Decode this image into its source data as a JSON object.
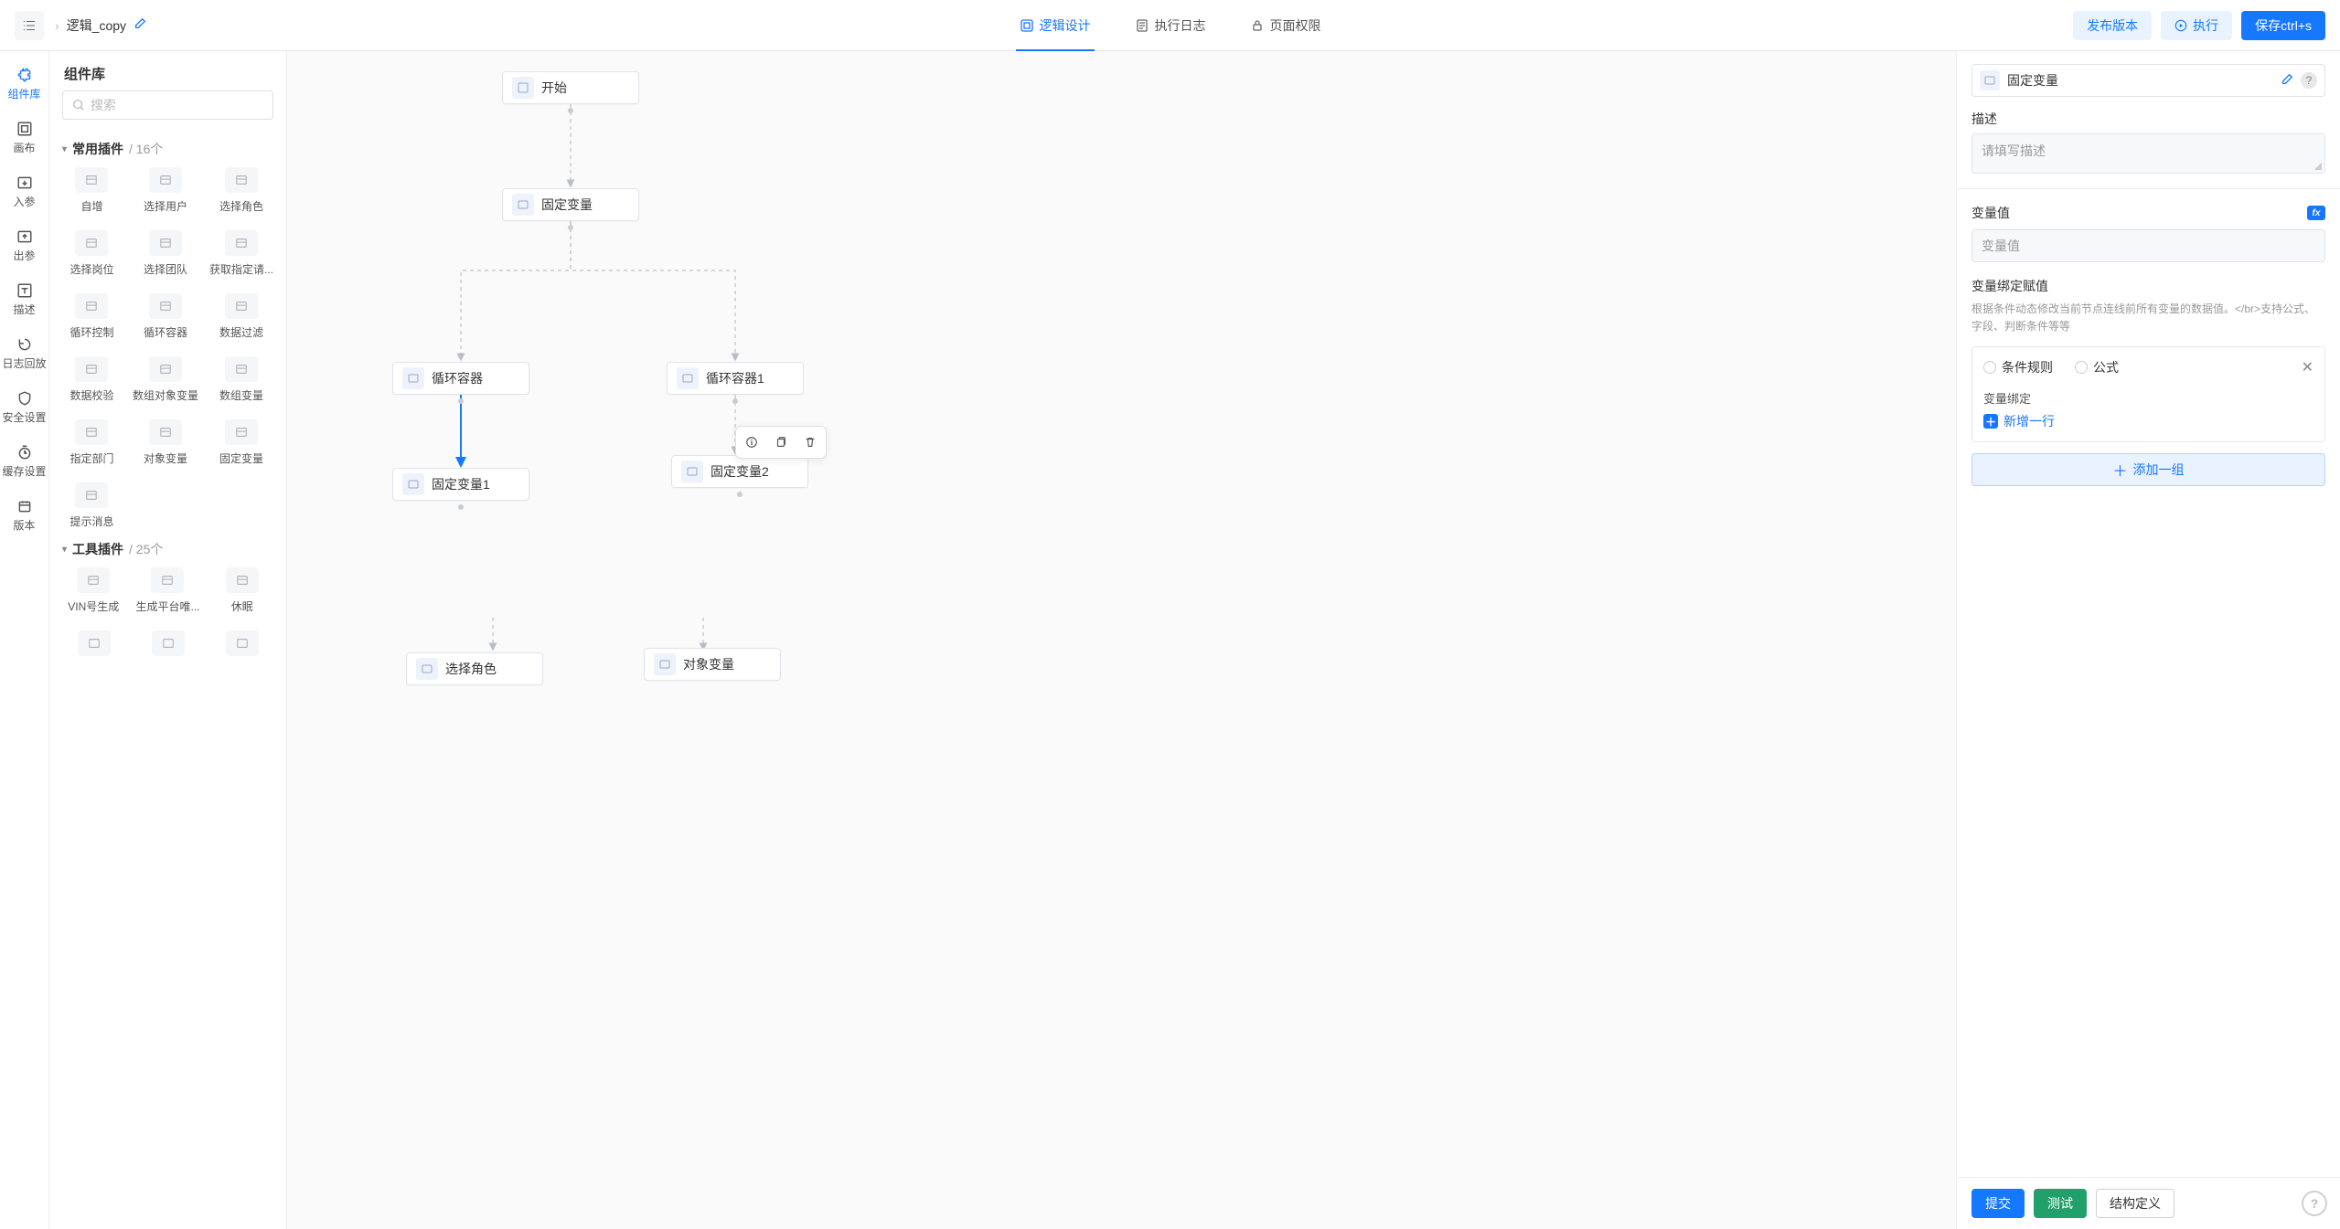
{
  "header": {
    "breadcrumb_name": "逻辑_copy",
    "tabs": [
      {
        "label": "逻辑设计",
        "active": true
      },
      {
        "label": "执行日志",
        "active": false
      },
      {
        "label": "页面权限",
        "active": false
      }
    ],
    "publish_btn": "发布版本",
    "run_btn": "执行",
    "save_btn": "保存ctrl+s"
  },
  "rail": [
    {
      "label": "组件库",
      "active": true
    },
    {
      "label": "画布",
      "active": false
    },
    {
      "label": "入参",
      "active": false
    },
    {
      "label": "出参",
      "active": false
    },
    {
      "label": "描述",
      "active": false
    },
    {
      "label": "日志回放",
      "active": false
    },
    {
      "label": "安全设置",
      "active": false
    },
    {
      "label": "缓存设置",
      "active": false
    },
    {
      "label": "版本",
      "active": false
    }
  ],
  "lib": {
    "title": "组件库",
    "search_placeholder": "搜索",
    "groups": [
      {
        "title": "常用插件",
        "count": "/ 16个",
        "items": [
          "自增",
          "选择用户",
          "选择角色",
          "选择岗位",
          "选择团队",
          "获取指定请...",
          "循环控制",
          "循环容器",
          "数据过滤",
          "数据校验",
          "数组对象变量",
          "数组变量",
          "指定部门",
          "对象变量",
          "固定变量",
          "提示消息"
        ]
      },
      {
        "title": "工具插件",
        "count": "/ 25个",
        "items": [
          "VIN号生成",
          "生成平台唯...",
          "休眠"
        ]
      }
    ]
  },
  "canvas": {
    "nodes": {
      "start": "开始",
      "fixed_var": "固定变量",
      "loop1": "循环容器",
      "loop2": "循环容器1",
      "fixed1": "固定变量1",
      "fixed2": "固定变量2",
      "select_role": "选择角色",
      "obj_var": "对象变量"
    }
  },
  "rpanel": {
    "title": "固定变量",
    "desc_label": "描述",
    "desc_placeholder": "请填写描述",
    "var_value_label": "变量值",
    "var_value_placeholder": "变量值",
    "bind_title": "变量绑定赋值",
    "bind_hint": "根据条件动态修改当前节点连线前所有变量的数据值。</br>支持公式、字段、判断条件等等",
    "radio_rule": "条件规则",
    "radio_formula": "公式",
    "sub_bind_label": "变量绑定",
    "add_row": "新增一行",
    "add_group": "添加一组",
    "submit_btn": "提交",
    "test_btn": "测试",
    "struct_btn": "结构定义"
  }
}
